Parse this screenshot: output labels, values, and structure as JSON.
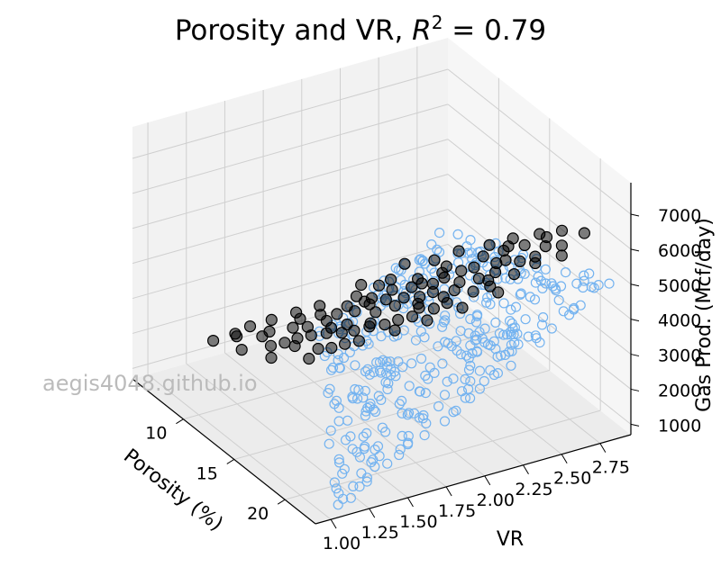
{
  "chart_data": {
    "type": "scatter",
    "title": "Porosity and VR, R² = 0.79",
    "r_squared": 0.79,
    "xlabel": "Porosity (%)",
    "ylabel": "VR",
    "zlabel": "Gas Prod. (Mcf/day)",
    "xlim": [
      5,
      23
    ],
    "ylim": [
      0.9,
      2.95
    ],
    "zlim": [
      700,
      7900
    ],
    "xticks": [
      10,
      15,
      20
    ],
    "yticks": [
      "1.00",
      "1.25",
      "1.50",
      "1.75",
      "2.00",
      "2.25",
      "2.50",
      "2.75"
    ],
    "zticks": [
      1000,
      2000,
      3000,
      4000,
      5000,
      6000,
      7000
    ],
    "grid": true,
    "projection": "3d",
    "colors": {
      "observed": "#000000",
      "fitted": "#74b3f0",
      "pane": "#f2f2f2",
      "grid": "#cfcfcf"
    },
    "series": [
      {
        "kind": "observed",
        "points": [
          [
            9.5,
            1.28,
            2480
          ],
          [
            10.8,
            1.36,
            2680
          ],
          [
            12.1,
            1.42,
            2720
          ],
          [
            8.9,
            1.31,
            2380
          ],
          [
            12.6,
            1.47,
            2900
          ],
          [
            13.2,
            1.52,
            3060
          ],
          [
            11.7,
            1.5,
            2960
          ],
          [
            14.1,
            1.56,
            3280
          ],
          [
            10.3,
            1.44,
            2600
          ],
          [
            13.8,
            1.61,
            3300
          ],
          [
            15.0,
            1.6,
            3450
          ],
          [
            12.4,
            1.55,
            3080
          ],
          [
            14.6,
            1.66,
            3520
          ],
          [
            11.2,
            1.58,
            3000
          ],
          [
            15.6,
            1.64,
            3600
          ],
          [
            13.0,
            1.7,
            3400
          ],
          [
            16.2,
            1.7,
            3780
          ],
          [
            14.0,
            1.75,
            3650
          ],
          [
            12.0,
            1.66,
            3200
          ],
          [
            16.8,
            1.76,
            3900
          ],
          [
            15.3,
            1.8,
            3860
          ],
          [
            13.6,
            1.84,
            3720
          ],
          [
            17.2,
            1.82,
            4050
          ],
          [
            14.8,
            1.9,
            3980
          ],
          [
            16.0,
            1.88,
            4100
          ],
          [
            18.0,
            1.86,
            4280
          ],
          [
            12.8,
            1.78,
            3480
          ],
          [
            15.8,
            1.95,
            4200
          ],
          [
            17.6,
            1.93,
            4350
          ],
          [
            14.2,
            1.98,
            4020
          ],
          [
            16.6,
            2.0,
            4350
          ],
          [
            18.6,
            1.96,
            4520
          ],
          [
            13.4,
            1.9,
            3700
          ],
          [
            15.2,
            2.04,
            4250
          ],
          [
            17.0,
            2.06,
            4500
          ],
          [
            19.0,
            2.02,
            4700
          ],
          [
            16.4,
            2.1,
            4550
          ],
          [
            18.2,
            2.12,
            4750
          ],
          [
            14.6,
            2.12,
            4250
          ],
          [
            17.8,
            2.18,
            4820
          ],
          [
            19.6,
            2.15,
            5000
          ],
          [
            15.8,
            2.2,
            4600
          ],
          [
            16.9,
            2.25,
            4850
          ],
          [
            18.8,
            2.24,
            5080
          ],
          [
            20.2,
            2.22,
            5200
          ],
          [
            17.4,
            2.3,
            5000
          ],
          [
            19.2,
            2.32,
            5250
          ],
          [
            15.0,
            2.28,
            4500
          ],
          [
            18.4,
            2.38,
            5250
          ],
          [
            20.6,
            2.35,
            5480
          ],
          [
            16.8,
            2.4,
            5050
          ],
          [
            19.8,
            2.44,
            5550
          ],
          [
            17.6,
            2.48,
            5300
          ],
          [
            21.0,
            2.46,
            5750
          ],
          [
            18.6,
            2.55,
            5600
          ],
          [
            20.2,
            2.58,
            5900
          ],
          [
            19.4,
            2.64,
            5900
          ],
          [
            21.2,
            2.62,
            6100
          ],
          [
            20.0,
            2.7,
            6150
          ],
          [
            21.6,
            2.74,
            6400
          ],
          [
            11.0,
            1.72,
            3150
          ],
          [
            10.2,
            1.62,
            2900
          ],
          [
            9.6,
            1.5,
            2700
          ],
          [
            12.2,
            1.88,
            3500
          ],
          [
            11.6,
            1.95,
            3600
          ],
          [
            13.0,
            2.05,
            3950
          ],
          [
            12.4,
            2.18,
            4100
          ],
          [
            13.8,
            2.28,
            4400
          ],
          [
            14.4,
            2.4,
            4650
          ],
          [
            15.6,
            2.52,
            4950
          ],
          [
            16.4,
            2.62,
            5200
          ],
          [
            17.8,
            2.7,
            5550
          ],
          [
            11.8,
            1.35,
            2650
          ],
          [
            13.4,
            1.4,
            2950
          ],
          [
            15.8,
            1.48,
            3350
          ],
          [
            17.0,
            1.58,
            3700
          ],
          [
            18.4,
            1.72,
            4150
          ],
          [
            19.6,
            1.85,
            4550
          ],
          [
            20.8,
            2.0,
            5000
          ],
          [
            21.6,
            2.18,
            5400
          ],
          [
            14.8,
            1.46,
            3120
          ],
          [
            16.2,
            1.54,
            3480
          ],
          [
            10.6,
            1.24,
            2400
          ],
          [
            12.9,
            1.28,
            2650
          ],
          [
            15.4,
            1.36,
            3100
          ],
          [
            8.4,
            1.2,
            2200
          ],
          [
            9.0,
            1.4,
            2500
          ],
          [
            18.8,
            2.3,
            4950
          ],
          [
            13.2,
            1.62,
            3350
          ],
          [
            16.0,
            1.72,
            3800
          ],
          [
            14.4,
            1.82,
            3850
          ],
          [
            17.2,
            1.95,
            4350
          ],
          [
            15.6,
            2.08,
            4400
          ],
          [
            18.2,
            2.05,
            4650
          ],
          [
            16.6,
            2.16,
            4700
          ],
          [
            19.0,
            2.4,
            5450
          ],
          [
            17.0,
            2.55,
            5200
          ],
          [
            20.4,
            2.5,
            5750
          ],
          [
            21.8,
            2.58,
            6000
          ],
          [
            12.6,
            2.0,
            3750
          ]
        ]
      },
      {
        "kind": "fitted",
        "sample_count": 600
      }
    ]
  },
  "watermark": "aegis4048.github.io"
}
